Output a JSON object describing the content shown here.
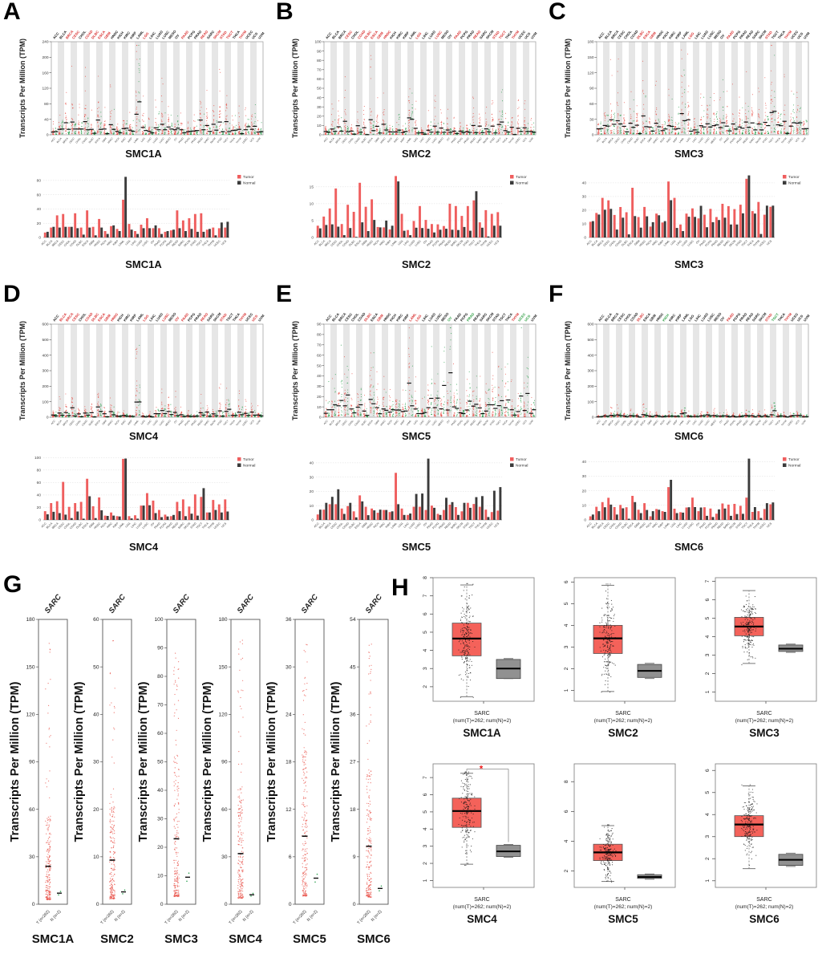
{
  "axis_label_tpm": "Transcripts Per Million (TPM)",
  "legend": {
    "tumor": "Tumor",
    "normal": "Normal"
  },
  "colors": {
    "tumor_bar": "#ef5e5e",
    "normal_bar": "#3b3b3b",
    "dot_tumor": "#e8544b",
    "dot_normal": "#31a354",
    "median": "#111111",
    "band": "#e6e6e6",
    "box_tumor": "#f4625a",
    "box_normal": "#919191",
    "label_red": "#d93030",
    "label_green": "#2f9e44",
    "label_black": "#222222",
    "sig": "#ee1111"
  },
  "dot_categories": [
    "ACC",
    "BLCA",
    "BRCA",
    "CESC",
    "CHOL",
    "COAD",
    "DLBC",
    "ESCA",
    "GBM",
    "HNSC",
    "KICH",
    "KIRC",
    "KIRP",
    "LAML",
    "LGG",
    "LIHC",
    "LUAD",
    "LUSC",
    "MESO",
    "OV",
    "PAAD",
    "PCPG",
    "PRAD",
    "READ",
    "SARC",
    "SKCM",
    "STAD",
    "TGCT",
    "THCA",
    "THYM",
    "UCEC",
    "UCS",
    "UVM"
  ],
  "bar_categories": [
    "ACC",
    "BLCA",
    "BRCA",
    "CESC",
    "CHOL",
    "COAD",
    "DLBC",
    "ESCA",
    "GBM",
    "HNSC",
    "KICH",
    "KIRC",
    "KIRP",
    "LAML",
    "LGG",
    "LIHC",
    "LUAD",
    "LUSC",
    "OV",
    "PAAD",
    "PCPG",
    "PRAD",
    "READ",
    "SARC",
    "SKCM",
    "STAD",
    "TGCT",
    "THCA",
    "THYM",
    "UCEC",
    "UCS"
  ],
  "chart_data": [
    {
      "id": "A",
      "letter": "A",
      "gene": "SMC1A",
      "type": "scatter+bar",
      "dot": {
        "ymax": 240,
        "ystep": 40,
        "red_labels": [
          "BRCA",
          "CESC",
          "COAD",
          "DLBC",
          "ESCA",
          "GBM",
          "LGG",
          "PAAD",
          "READ",
          "SKCM",
          "STAD",
          "TGCT",
          "THYM"
        ],
        "green_labels": []
      },
      "bar": {
        "ymax": 90,
        "yticks": [
          0,
          20,
          40,
          60,
          80
        ],
        "tumor": [
          7,
          14,
          31,
          33,
          15,
          34,
          14,
          38,
          15,
          26,
          9,
          16,
          12,
          53,
          19,
          9,
          18,
          27,
          13,
          13,
          8,
          10,
          38,
          24,
          27,
          33,
          34,
          11,
          14,
          13,
          14
        ],
        "normal": [
          8,
          15,
          14,
          15,
          15,
          13,
          4,
          14,
          3,
          14,
          5,
          17,
          9,
          85,
          11,
          5,
          13,
          13,
          17,
          5,
          9,
          11,
          13,
          9,
          12,
          8,
          8,
          12,
          3,
          21,
          22
        ]
      }
    },
    {
      "id": "B",
      "letter": "B",
      "gene": "SMC2",
      "type": "scatter+bar",
      "dot": {
        "ymax": 100,
        "ystep": 10,
        "red_labels": [
          "CESC",
          "COAD",
          "DLBC",
          "ESCA",
          "GBM",
          "HNSC",
          "LGG",
          "LUSC",
          "PAAD",
          "READ",
          "STAD",
          "TGCT",
          "THYM"
        ],
        "green_labels": []
      },
      "bar": {
        "ymax": 19,
        "yticks": [
          0,
          5,
          10,
          15
        ],
        "tumor": [
          3.5,
          6.2,
          8.6,
          14.5,
          4,
          9.7,
          7.6,
          16.2,
          9.1,
          11.3,
          3.1,
          3,
          2.4,
          18.2,
          7,
          2.2,
          4.9,
          9.3,
          5.2,
          4,
          3.9,
          3.4,
          10,
          9.3,
          6.4,
          9.3,
          11,
          4.5,
          8.1,
          7,
          7.5
        ],
        "normal": [
          2.7,
          3.7,
          3.9,
          3.2,
          0.7,
          2.8,
          0.2,
          4.5,
          1.9,
          5.2,
          3,
          5,
          3.5,
          16.6,
          2,
          0.7,
          2.9,
          2.8,
          2.6,
          1.5,
          2.3,
          2.6,
          2.3,
          2.2,
          3.1,
          2,
          13.7,
          2.9,
          0.3,
          3.5,
          3.5
        ]
      }
    },
    {
      "id": "C",
      "letter": "C",
      "gene": "SMC3",
      "type": "scatter+bar",
      "dot": {
        "ymax": 180,
        "ystep": 30,
        "red_labels": [
          "DLBC",
          "ESCA",
          "GBM",
          "LGG",
          "PAAD",
          "STAD",
          "THYM"
        ],
        "green_labels": []
      },
      "bar": {
        "ymax": 47,
        "yticks": [
          0,
          10,
          20,
          30,
          40
        ],
        "tumor": [
          11.5,
          18,
          29,
          27.2,
          16.5,
          22.3,
          18.5,
          36.4,
          15,
          22.4,
          8,
          17.5,
          11,
          41,
          29,
          9.5,
          17.5,
          21.3,
          14,
          16.7,
          21,
          15,
          24.7,
          23,
          20.8,
          24,
          43,
          19.3,
          26,
          16.7,
          22.5
        ],
        "normal": [
          12,
          16.8,
          20.3,
          21,
          5.8,
          14.5,
          2.3,
          15.7,
          7.2,
          15.5,
          11.2,
          16.3,
          12,
          27.3,
          7,
          4.7,
          15.2,
          15.1,
          23.2,
          7.5,
          11.2,
          12.8,
          14.5,
          9.5,
          9.5,
          17.7,
          45.5,
          17.5,
          2.6,
          23.3,
          23.3
        ]
      }
    },
    {
      "id": "D",
      "letter": "D",
      "gene": "SMC4",
      "type": "scatter+bar",
      "dot": {
        "ymax": 600,
        "ystep": 100,
        "red_labels": [
          "BLCA",
          "BRCA",
          "CESC",
          "COAD",
          "DLBC",
          "ESCA",
          "GBM",
          "HNSC",
          "LGG",
          "LUSC",
          "OV",
          "PAAD",
          "READ",
          "STAD",
          "THYM",
          "UCS"
        ],
        "green_labels": []
      },
      "bar": {
        "ymax": 103,
        "yticks": [
          0,
          20,
          40,
          60,
          80,
          100
        ],
        "tumor": [
          14,
          27,
          30,
          61,
          21,
          27,
          29,
          66,
          22,
          36,
          7,
          12,
          6,
          98,
          6,
          7.5,
          23,
          43,
          31,
          16,
          8.5,
          6,
          29,
          33,
          21.5,
          41,
          37,
          12,
          32,
          25,
          33
        ],
        "normal": [
          9,
          13,
          11,
          8.5,
          3,
          13.5,
          2,
          38,
          3,
          15.5,
          6.5,
          7,
          5.5,
          98.5,
          2.5,
          2,
          23,
          23.5,
          11,
          4.5,
          5.5,
          8,
          14,
          6,
          10,
          7,
          51,
          12,
          16,
          12,
          13.5
        ]
      }
    },
    {
      "id": "E",
      "letter": "E",
      "gene": "SMC5",
      "type": "scatter+bar",
      "dot": {
        "ymax": 90,
        "ystep": 10,
        "red_labels": [
          "DLBC",
          "GBM",
          "LAML",
          "LGG",
          "THYM"
        ],
        "green_labels": [
          "OV",
          "PRAD",
          "UCEC",
          "UCS"
        ]
      },
      "bar": {
        "ymax": 45,
        "yticks": [
          0,
          10,
          20,
          30,
          40
        ],
        "tumor": [
          3.8,
          7.2,
          11,
          11,
          8,
          9.7,
          6,
          17.2,
          9.2,
          8,
          5,
          7,
          5.5,
          33,
          8,
          3.5,
          9.2,
          9.2,
          7,
          10,
          4.3,
          7,
          10.7,
          9,
          6,
          12,
          11.2,
          9.2,
          7.2,
          5.5,
          6.5
        ],
        "normal": [
          7.2,
          12,
          16.2,
          21.5,
          4.2,
          12,
          1.8,
          13,
          3.3,
          6.7,
          7.2,
          7,
          6,
          11,
          3.5,
          4.5,
          18.2,
          18.5,
          43,
          8.5,
          3.5,
          15.5,
          12.5,
          3.5,
          12,
          8.5,
          16,
          16.7,
          2,
          20.5,
          23
        ]
      }
    },
    {
      "id": "F",
      "letter": "F",
      "gene": "SMC6",
      "type": "scatter+bar",
      "dot": {
        "ymax": 600,
        "ystep": 100,
        "red_labels": [
          "DLBC",
          "PAAD",
          "STAD",
          "THYM"
        ],
        "green_labels": [
          "KICH",
          "TGCT"
        ]
      },
      "bar": {
        "ymax": 44,
        "yticks": [
          0,
          10,
          20,
          30,
          40
        ],
        "tumor": [
          2.5,
          9,
          12.2,
          15.2,
          8.8,
          10.3,
          8.7,
          16.5,
          7,
          11.5,
          2.5,
          7.5,
          6,
          22.5,
          7.7,
          5.3,
          8.5,
          15.3,
          6,
          8.7,
          7.8,
          4.3,
          11.3,
          10.5,
          11,
          9.7,
          15.3,
          5.5,
          6,
          7.5,
          10.7
        ],
        "normal": [
          3.7,
          6,
          8.7,
          10.5,
          3.7,
          8,
          0.8,
          12.2,
          4.7,
          6.8,
          6,
          7,
          5.5,
          27.5,
          4.7,
          5,
          8.7,
          8.8,
          8.5,
          2.8,
          2,
          7.2,
          7.8,
          2.8,
          4,
          4.2,
          42,
          8.8,
          1.3,
          11.5,
          12
        ]
      }
    },
    {
      "id": "G",
      "letter": "G",
      "type": "scatter-strip",
      "top_label": "SARC",
      "ylabel": "Transcripts Per Million (TPM)",
      "xticks": [
        "T (n=262)",
        "N (n=2)"
      ],
      "plots": [
        {
          "gene": "SMC1A",
          "ymax": 180,
          "ystep": 30,
          "tumor_median": 24,
          "normal_median": 7
        },
        {
          "gene": "SMC2",
          "ymax": 60,
          "ystep": 10,
          "tumor_median": 9.3,
          "normal_median": 2.6
        },
        {
          "gene": "SMC3",
          "ymax": 100,
          "ystep": 10,
          "tumor_median": 23,
          "normal_median": 9.5
        },
        {
          "gene": "SMC4",
          "ymax": 180,
          "ystep": 30,
          "tumor_median": 32,
          "normal_median": 6
        },
        {
          "gene": "SMC5",
          "ymax": 36,
          "ystep": 6,
          "tumor_median": 8.6,
          "normal_median": 3.3
        },
        {
          "gene": "SMC6",
          "ymax": 54,
          "ystep": 9,
          "tumor_median": 11,
          "normal_median": 3
        }
      ]
    },
    {
      "id": "H",
      "letter": "H",
      "type": "box",
      "xlabel1": "SARC",
      "xlabel2": "(num(T)=262; num(N)=2)",
      "n_points": 262,
      "plots": [
        {
          "gene": "SMC1A",
          "ymin": 1.2,
          "ymax": 8.0,
          "yticks": [
            2,
            3,
            4,
            5,
            6,
            7,
            8
          ],
          "tumor": {
            "lo": 1.45,
            "q1": 3.7,
            "med": 4.65,
            "q3": 5.5,
            "hi": 7.6
          },
          "normal": {
            "lo": 2.45,
            "q1": 2.45,
            "med": 3.0,
            "q3": 3.5,
            "hi": 3.55
          },
          "sig": false
        },
        {
          "gene": "SMC2",
          "ymin": 0.5,
          "ymax": 6.2,
          "yticks": [
            1,
            2,
            3,
            4,
            5,
            6
          ],
          "tumor": {
            "lo": 0.95,
            "q1": 2.7,
            "med": 3.4,
            "q3": 4.0,
            "hi": 5.85
          },
          "normal": {
            "lo": 1.55,
            "q1": 1.6,
            "med": 1.9,
            "q3": 2.2,
            "hi": 2.25
          },
          "sig": false
        },
        {
          "gene": "SMC3",
          "ymin": 0.5,
          "ymax": 7.2,
          "yticks": [
            1,
            2,
            3,
            4,
            5,
            6,
            7
          ],
          "tumor": {
            "lo": 2.55,
            "q1": 4.05,
            "med": 4.55,
            "q3": 5.05,
            "hi": 6.5
          },
          "normal": {
            "lo": 3.15,
            "q1": 3.2,
            "med": 3.35,
            "q3": 3.55,
            "hi": 3.6
          },
          "sig": false
        },
        {
          "gene": "SMC4",
          "ymin": 0.6,
          "ymax": 7.8,
          "yticks": [
            1,
            2,
            3,
            4,
            5,
            6,
            7
          ],
          "tumor": {
            "lo": 1.95,
            "q1": 4.1,
            "med": 5.05,
            "q3": 5.8,
            "hi": 7.25
          },
          "normal": {
            "lo": 2.35,
            "q1": 2.4,
            "med": 2.7,
            "q3": 3.05,
            "hi": 3.1
          },
          "sig": true,
          "sig_y": 7.5,
          "sig_symbol": "*"
        },
        {
          "gene": "SMC5",
          "ymin": 0.9,
          "ymax": 9.2,
          "yticks": [
            2,
            4,
            6,
            8
          ],
          "tumor": {
            "lo": 1.3,
            "q1": 2.7,
            "med": 3.25,
            "q3": 3.8,
            "hi": 5.05
          },
          "normal": {
            "lo": 1.45,
            "q1": 1.5,
            "med": 1.6,
            "q3": 1.75,
            "hi": 1.8
          },
          "sig": false
        },
        {
          "gene": "SMC6",
          "ymin": 0.7,
          "ymax": 6.3,
          "yticks": [
            1,
            2,
            3,
            4,
            5,
            6
          ],
          "tumor": {
            "lo": 1.55,
            "q1": 3.0,
            "med": 3.55,
            "q3": 3.95,
            "hi": 5.3
          },
          "normal": {
            "lo": 1.65,
            "q1": 1.7,
            "med": 1.95,
            "q3": 2.2,
            "hi": 2.25
          },
          "sig": false
        }
      ]
    }
  ]
}
